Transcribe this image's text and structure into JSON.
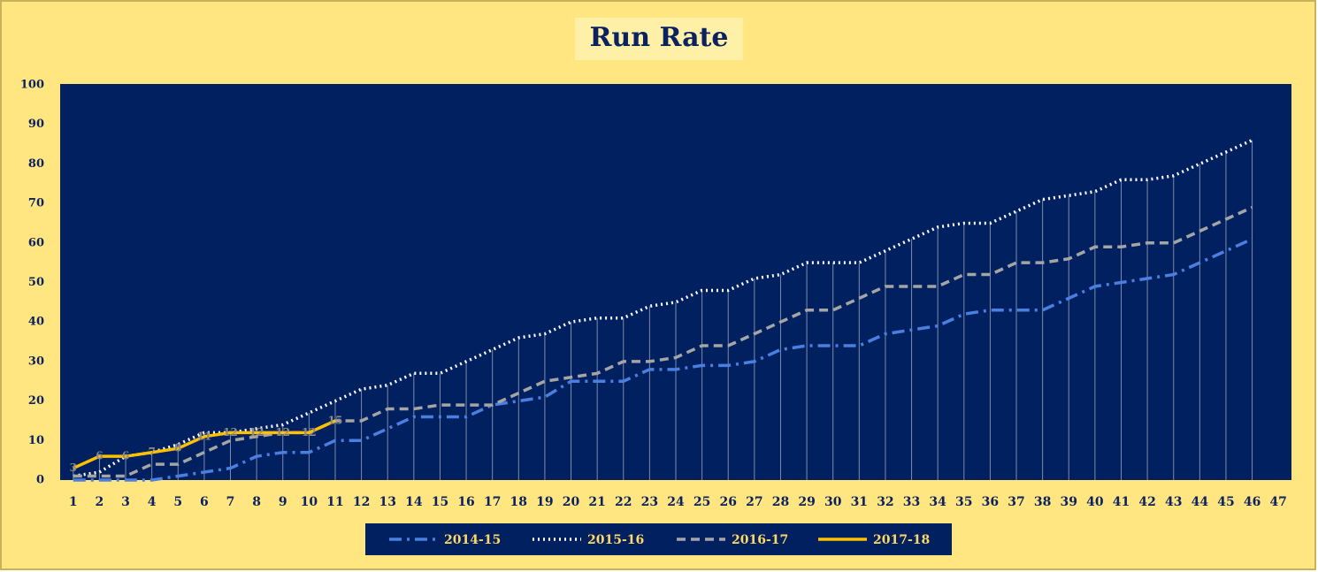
{
  "chart_data": {
    "type": "line",
    "title": "Run Rate",
    "categories": [
      1,
      2,
      3,
      4,
      5,
      6,
      7,
      8,
      9,
      10,
      11,
      12,
      13,
      14,
      15,
      16,
      17,
      18,
      19,
      20,
      21,
      22,
      23,
      24,
      25,
      26,
      27,
      28,
      29,
      30,
      31,
      32,
      33,
      34,
      35,
      36,
      37,
      38,
      39,
      40,
      41,
      42,
      43,
      44,
      45,
      46,
      47
    ],
    "ylim": [
      0,
      100
    ],
    "yticks": [
      0,
      10,
      20,
      30,
      40,
      50,
      60,
      70,
      80,
      90,
      100
    ],
    "drop_lines": true,
    "legend": "bottom",
    "series": [
      {
        "name": "2014-15",
        "color": "#4a7fe0",
        "dash": "dashdot",
        "values": [
          0,
          0,
          0,
          0,
          1,
          2,
          3,
          6,
          7,
          7,
          10,
          10,
          13,
          16,
          16,
          16,
          19,
          20,
          21,
          25,
          25,
          25,
          28,
          28,
          29,
          29,
          30,
          33,
          34,
          34,
          34,
          37,
          38,
          39,
          42,
          43,
          43,
          43,
          46,
          49,
          50,
          51,
          52,
          55,
          58,
          61,
          null
        ]
      },
      {
        "name": "2015-16",
        "color": "#ffffff",
        "dash": "dot",
        "values": [
          1,
          2,
          6,
          7,
          9,
          12,
          12,
          13,
          14,
          17,
          20,
          23,
          24,
          27,
          27,
          30,
          33,
          36,
          37,
          40,
          41,
          41,
          44,
          45,
          48,
          48,
          51,
          52,
          55,
          55,
          55,
          58,
          61,
          64,
          65,
          65,
          68,
          71,
          72,
          73,
          76,
          76,
          77,
          80,
          83,
          86,
          null
        ]
      },
      {
        "name": "2016-17",
        "color": "#a5a5a5",
        "dash": "dash",
        "values": [
          1,
          1,
          1,
          4,
          4,
          7,
          10,
          11,
          12,
          12,
          15,
          15,
          18,
          18,
          19,
          19,
          19,
          22,
          25,
          26,
          27,
          30,
          30,
          31,
          34,
          34,
          37,
          40,
          43,
          43,
          46,
          49,
          49,
          49,
          52,
          52,
          55,
          55,
          56,
          59,
          59,
          60,
          60,
          63,
          66,
          69,
          null
        ]
      },
      {
        "name": "2017-18",
        "color": "#ffc000",
        "dash": "solid",
        "data_labels": true,
        "values": [
          3,
          6,
          6,
          7,
          8,
          11,
          12,
          12,
          12,
          12,
          15,
          null,
          null,
          null,
          null,
          null,
          null,
          null,
          null,
          null,
          null,
          null,
          null,
          null,
          null,
          null,
          null,
          null,
          null,
          null,
          null,
          null,
          null,
          null,
          null,
          null,
          null,
          null,
          null,
          null,
          null,
          null,
          null,
          null,
          null,
          null,
          null
        ]
      }
    ]
  }
}
